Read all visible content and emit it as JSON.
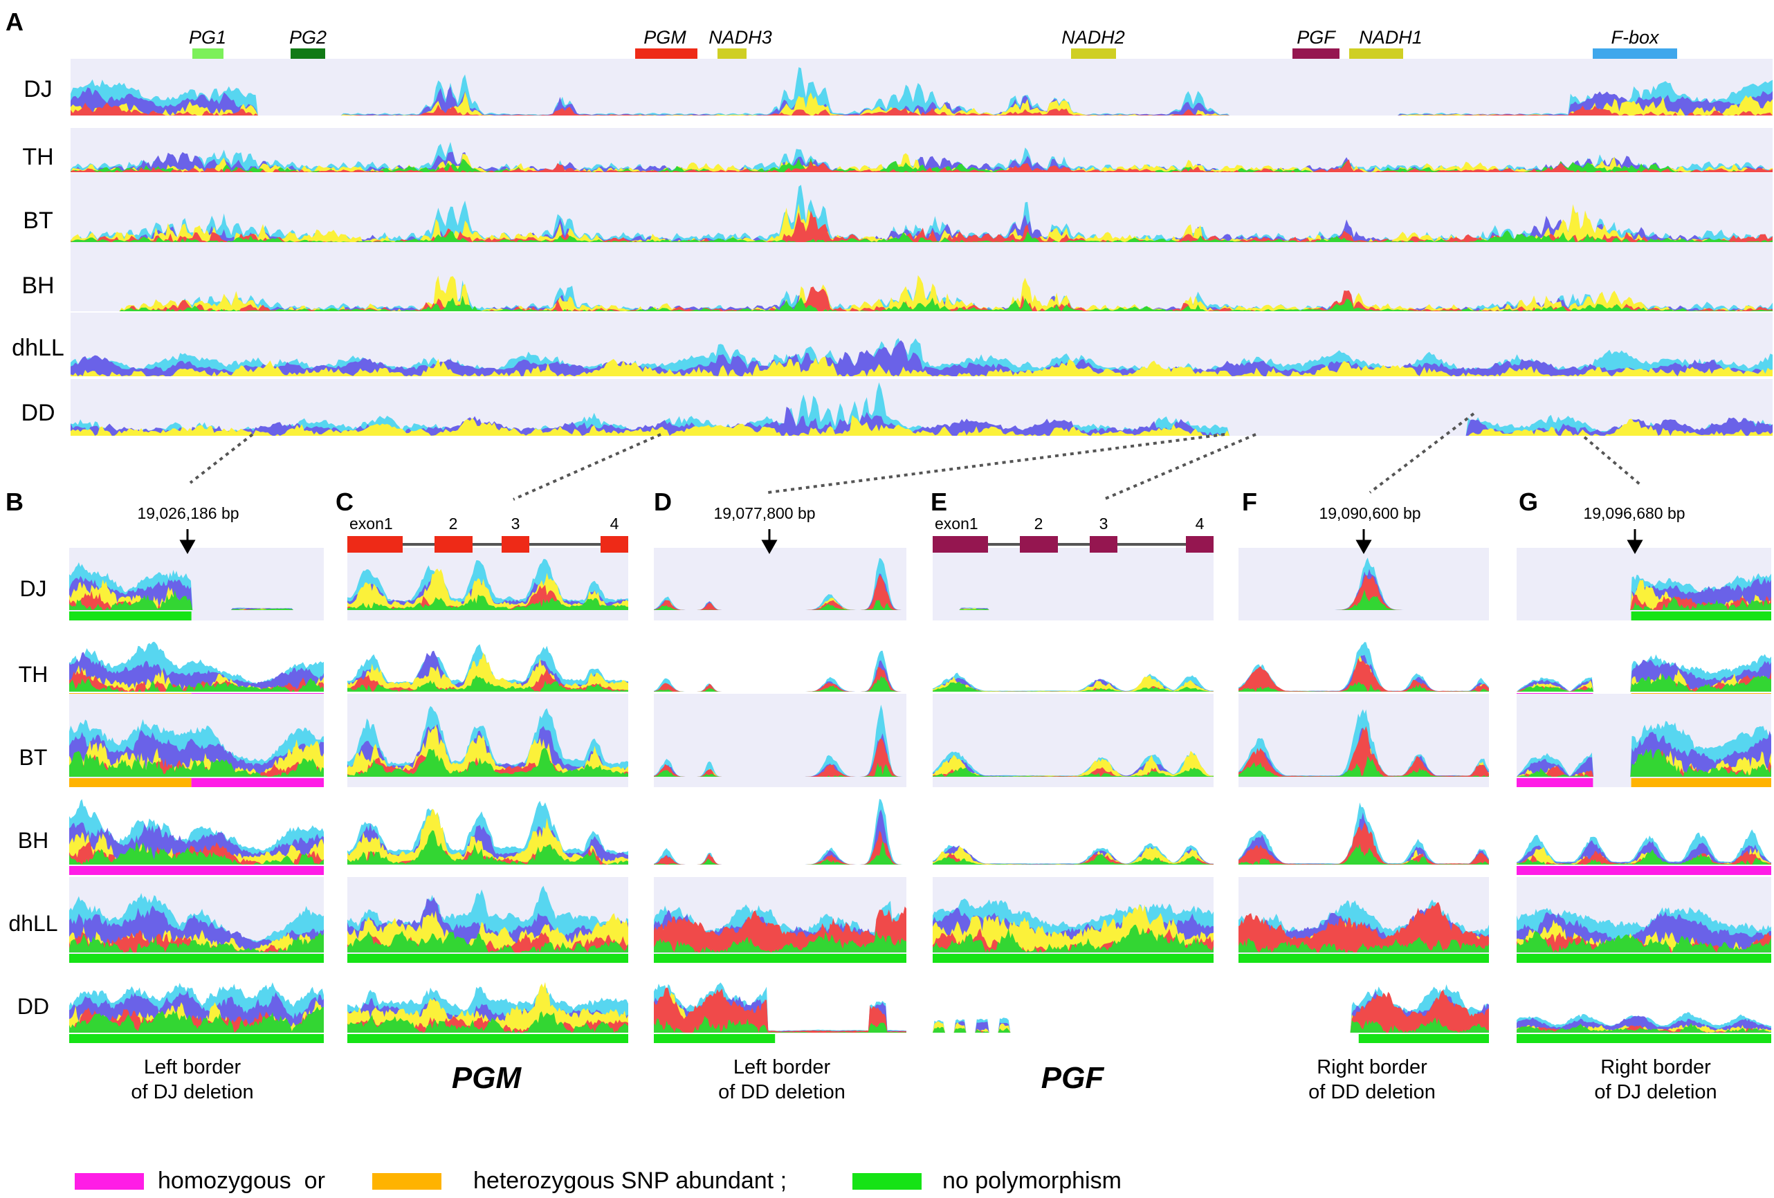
{
  "panels": {
    "A": "A",
    "B": "B",
    "C": "C",
    "D": "D",
    "E": "E",
    "F": "F",
    "G": "G"
  },
  "samples": [
    "DJ",
    "TH",
    "BT",
    "BH",
    "dhLL",
    "DD"
  ],
  "genes": [
    {
      "label": "PG1",
      "color": "#7cf05a"
    },
    {
      "label": "PG2",
      "color": "#117a16"
    },
    {
      "label": "PGM",
      "color": "#ee2a17"
    },
    {
      "label": "NADH3",
      "color": "#cfcf24"
    },
    {
      "label": "NADH2",
      "color": "#cfcf24"
    },
    {
      "label": "PGF",
      "color": "#951650"
    },
    {
      "label": "NADH1",
      "color": "#cfcf24"
    },
    {
      "label": "F-box",
      "color": "#3fa7ec"
    }
  ],
  "positions": {
    "B": "19,026,186 bp",
    "D": "19,077,800 bp",
    "F": "19,090,600 bp",
    "G": "19,096,680 bp"
  },
  "exons": [
    "exon1",
    "2",
    "3",
    "4"
  ],
  "captions": {
    "B": [
      "Left border",
      "of DJ deletion"
    ],
    "C": "PGM",
    "D": [
      "Left border",
      "of DD deletion"
    ],
    "E": "PGF",
    "F": [
      "Right border",
      "of DD deletion"
    ],
    "G": [
      "Right border",
      "of DJ deletion"
    ]
  },
  "legend": {
    "homozygous": "homozygous  or",
    "heterozygous": "heterozygous SNP abundant ;",
    "none": "no polymorphism"
  },
  "colors": {
    "homozygous": "#ff1de6",
    "heterozygous": "#ffb300",
    "none": "#16e316",
    "track_bg": "#ededf9",
    "cyan": "#57d6f0",
    "blue": "#6a62e8",
    "yellow": "#fbf13a",
    "red": "#f04a4a",
    "green": "#33d633"
  }
}
